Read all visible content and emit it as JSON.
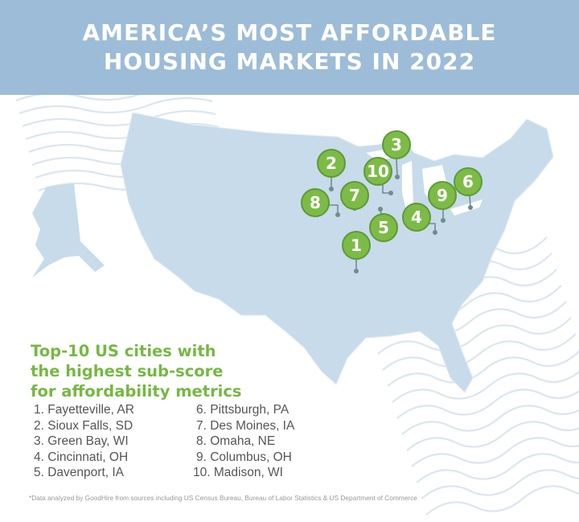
{
  "title": {
    "line1": "AMERICA’S MOST AFFORDABLE",
    "line2": "HOUSING MARKETS IN 2022"
  },
  "colors": {
    "header": "#9dbcd7",
    "map": "#c7dbeb",
    "accent_green": "#7dbb47",
    "waves": "#dbe6ef"
  },
  "subtitle": {
    "line1": "Top-10 US cities with",
    "line2": "the highest sub-score",
    "line3": "for affordability metrics"
  },
  "markers": [
    "1",
    "2",
    "3",
    "4",
    "5",
    "6",
    "7",
    "8",
    "9",
    "10"
  ],
  "cities": [
    "1. Fayetteville, AR",
    "2. Sioux Falls, SD",
    "3. Green Bay, WI",
    "4. Cincinnati, OH",
    "5. Davenport, IA",
    "6. Pittsburgh, PA",
    "7. Des Moines, IA",
    "8. Omaha, NE",
    "9. Columbus, OH",
    "10. Madison, WI"
  ],
  "footnote": "*Data analyzed by GoodHire from sources including US Census Bureau, Bureau of Labor Statistics & US Department of Commerce"
}
